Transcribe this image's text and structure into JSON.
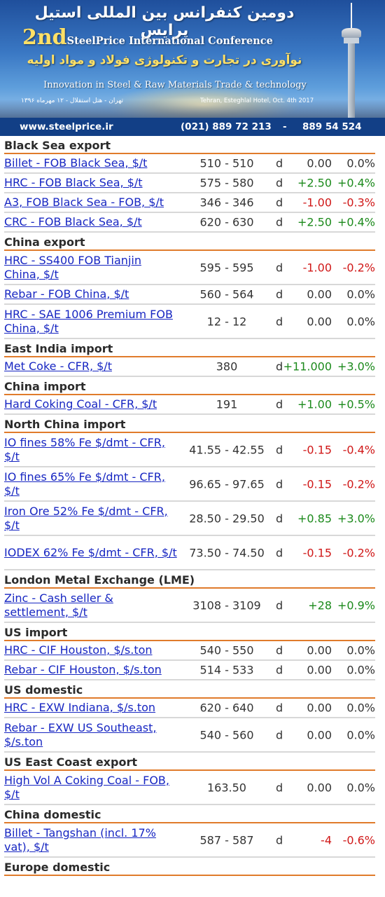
{
  "banner": {
    "fa_title": "دومین کنفرانس بین المللی استیل پرایس",
    "en_ordinal": "2nd",
    "en_name": "SteelPrice International Conference",
    "fa_subtitle": "نوآوری در تجارت و تکنولوژی فولاد و مواد اولیه",
    "en_subtitle": "Innovation in Steel & Raw Materials Trade & technology",
    "venue_fa": "تهران - هتل استقلال - ۱۲ مهرماه ۱۳۹۶",
    "venue_en": "Tehran, Esteghlal Hotel, Oct. 4th 2017",
    "url": "www.steelprice.ir",
    "phone1": "(021)  889 72 213",
    "dash": "-",
    "phone2": "889 54 524"
  },
  "sections": [
    {
      "title": "Black Sea export",
      "rows": [
        {
          "name": "Billet - FOB Black Sea, $/t",
          "range": "510 - 510",
          "per": "d",
          "change": "0.00",
          "pct": "0.0%",
          "dir": "zero"
        },
        {
          "name": "HRC - FOB Black Sea, $/t",
          "range": "575 - 580",
          "per": "d",
          "change": "+2.50",
          "pct": "+0.4%",
          "dir": "pos"
        },
        {
          "name": "A3, FOB Black Sea - FOB, $/t",
          "range": "346 - 346",
          "per": "d",
          "change": "-1.00",
          "pct": "-0.3%",
          "dir": "neg"
        },
        {
          "name": "CRC - FOB Black Sea, $/t",
          "range": "620 - 630",
          "per": "d",
          "change": "+2.50",
          "pct": "+0.4%",
          "dir": "pos"
        }
      ]
    },
    {
      "title": "China export",
      "rows": [
        {
          "name": "HRC - SS400 FOB Tianjin China, $/t",
          "range": "595 - 595",
          "per": "d",
          "change": "-1.00",
          "pct": "-0.2%",
          "dir": "neg",
          "tall": true
        },
        {
          "name": "Rebar - FOB China, $/t",
          "range": "560 - 564",
          "per": "d",
          "change": "0.00",
          "pct": "0.0%",
          "dir": "zero"
        },
        {
          "name": "HRC - SAE 1006 Premium FOB China, $/t",
          "range": "12 - 12",
          "per": "d",
          "change": "0.00",
          "pct": "0.0%",
          "dir": "zero",
          "tall": true
        }
      ]
    },
    {
      "title": "East India import",
      "rows": [
        {
          "name": "Met Coke - CFR, $/t",
          "range": "380",
          "per": "d",
          "change": "+11.000",
          "pct": "+3.0%",
          "dir": "pos"
        }
      ]
    },
    {
      "title": "China import",
      "rows": [
        {
          "name": "Hard Coking Coal - CFR, $/t",
          "range": "191",
          "per": "d",
          "change": "+1.00",
          "pct": "+0.5%",
          "dir": "pos"
        }
      ]
    },
    {
      "title": "North China import",
      "rows": [
        {
          "name": "IO fines 58% Fe $/dmt - CFR, $/t",
          "range": "41.55 - 42.55",
          "per": "d",
          "change": "-0.15",
          "pct": "-0.4%",
          "dir": "neg",
          "tall": true
        },
        {
          "name": "IO fines 65% Fe $/dmt - CFR, $/t",
          "range": "96.65 - 97.65",
          "per": "d",
          "change": "-0.15",
          "pct": "-0.2%",
          "dir": "neg",
          "tall": true
        },
        {
          "name": "Iron Ore 52% Fe $/dmt - CFR, $/t",
          "range": "28.50 - 29.50",
          "per": "d",
          "change": "+0.85",
          "pct": "+3.0%",
          "dir": "pos",
          "tall": true
        },
        {
          "name": "IODEX 62% Fe $/dmt - CFR, $/t",
          "range": "73.50 - 74.50",
          "per": "d",
          "change": "-0.15",
          "pct": "-0.2%",
          "dir": "neg",
          "tall": true
        }
      ]
    },
    {
      "title": "London Metal Exchange (LME)",
      "rows": [
        {
          "name": "Zinc - Cash seller & settlement, $/t",
          "range": "3108 - 3109",
          "per": "d",
          "change": "+28",
          "pct": "+0.9%",
          "dir": "pos",
          "tall": true
        }
      ]
    },
    {
      "title": "US import",
      "rows": [
        {
          "name": "HRC - CIF Houston, $/s.ton",
          "range": "540 - 550",
          "per": "d",
          "change": "0.00",
          "pct": "0.0%",
          "dir": "zero"
        },
        {
          "name": "Rebar - CIF Houston, $/s.ton",
          "range": "514 - 533",
          "per": "d",
          "change": "0.00",
          "pct": "0.0%",
          "dir": "zero"
        }
      ]
    },
    {
      "title": "US domestic",
      "rows": [
        {
          "name": "HRC - EXW Indiana, $/s.ton",
          "range": "620 - 640",
          "per": "d",
          "change": "0.00",
          "pct": "0.0%",
          "dir": "zero"
        },
        {
          "name": "Rebar - EXW US Southeast, $/s.ton",
          "range": "540 - 560",
          "per": "d",
          "change": "0.00",
          "pct": "0.0%",
          "dir": "zero",
          "tall": true
        }
      ]
    },
    {
      "title": "US East Coast export",
      "rows": [
        {
          "name": "High Vol A Coking Coal - FOB, $/t",
          "range": "163.50",
          "per": "d",
          "change": "0.00",
          "pct": "0.0%",
          "dir": "zero",
          "tall": true
        }
      ]
    },
    {
      "title": "China domestic",
      "rows": [
        {
          "name": "Billet - Tangshan (incl. 17% vat), $/t",
          "range": "587 - 587",
          "per": "d",
          "change": "-4",
          "pct": "-0.6%",
          "dir": "neg",
          "tall": true
        }
      ]
    },
    {
      "title": "Europe domestic",
      "rows": []
    }
  ],
  "colors": {
    "link": "#1726c2",
    "positive": "#1c8a1c",
    "negative": "#d01818",
    "section_rule": "#e07b2b",
    "contact_bar": "#123f86"
  }
}
